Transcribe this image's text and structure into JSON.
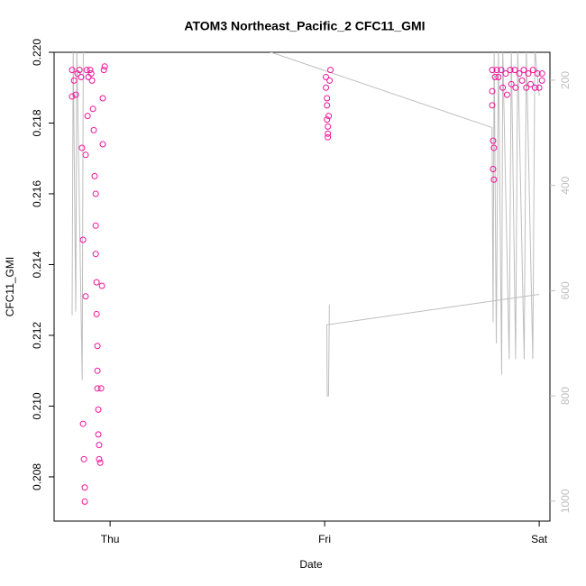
{
  "chart_data": {
    "type": "scatter",
    "title": "ATOM3 Northeast_Pacific_2 CFC11_GMI",
    "xlabel": "Date",
    "ylabel": "CFC11_GMI",
    "xlim": [
      -0.261,
      2.05
    ],
    "xticks": [
      {
        "value": 0,
        "label": "Thu"
      },
      {
        "value": 1,
        "label": "Fri"
      },
      {
        "value": 2,
        "label": "Sat"
      }
    ],
    "ylim": [
      0.20675,
      0.22
    ],
    "yticks": [
      0.208,
      {
        "value": 0.21,
        "label": "0.210"
      },
      0.212,
      0.214,
      0.216,
      0.218,
      {
        "value": 0.22,
        "label": "0.220"
      }
    ],
    "y2lim": [
      1038,
      147
    ],
    "y2ticks": [
      200,
      400,
      600,
      800,
      1000
    ],
    "y2color": "#bebebe",
    "series": [
      {
        "type": "scatter",
        "color": "#f0149a",
        "x": [
          -0.177,
          -0.177,
          -0.168,
          -0.16,
          -0.152,
          -0.143,
          -0.135,
          -0.131,
          -0.126,
          -0.126,
          -0.122,
          -0.118,
          -0.118,
          -0.114,
          -0.114,
          -0.109,
          -0.105,
          -0.101,
          -0.093,
          -0.088,
          -0.084,
          -0.08,
          -0.076,
          -0.072,
          -0.067,
          -0.067,
          -0.067,
          -0.063,
          -0.063,
          -0.059,
          -0.059,
          -0.059,
          -0.055,
          -0.055,
          -0.051,
          -0.051,
          -0.046,
          -0.042,
          -0.038,
          -0.034,
          -0.034,
          -0.029,
          -0.025,
          1.006,
          1.006,
          1.011,
          1.011,
          1.011,
          1.015,
          1.015,
          1.015,
          1.019,
          1.023,
          1.027,
          1.781,
          1.781,
          1.781,
          1.785,
          1.785,
          1.789,
          1.789,
          1.794,
          1.802,
          1.81,
          1.823,
          1.83,
          1.844,
          1.85,
          1.865,
          1.87,
          1.886,
          1.89,
          1.907,
          1.92,
          1.928,
          1.94,
          1.949,
          1.96,
          1.971,
          1.98,
          1.992,
          2.0,
          2.013,
          2.013
        ],
        "values": [
          0.21875,
          0.2195,
          0.2192,
          0.2188,
          0.2194,
          0.2195,
          0.2193,
          0.2173,
          0.2147,
          0.2095,
          0.2085,
          0.2077,
          0.2073,
          0.2131,
          0.2171,
          0.2195,
          0.2182,
          0.2193,
          0.2195,
          0.2194,
          0.2192,
          0.2184,
          0.2178,
          0.2165,
          0.216,
          0.2151,
          0.2143,
          0.2135,
          0.2126,
          0.2117,
          0.211,
          0.2105,
          0.2099,
          0.2092,
          0.2089,
          0.2085,
          0.2084,
          0.2105,
          0.2134,
          0.2174,
          0.2187,
          0.2195,
          0.2196,
          0.2193,
          0.219,
          0.2187,
          0.2185,
          0.2181,
          0.2179,
          0.2177,
          0.2176,
          0.2182,
          0.2192,
          0.2195,
          0.2195,
          0.2189,
          0.2185,
          0.2175,
          0.2167,
          0.2164,
          0.2173,
          0.2193,
          0.2195,
          0.2193,
          0.2195,
          0.219,
          0.2194,
          0.2188,
          0.2195,
          0.2191,
          0.2195,
          0.219,
          0.2194,
          0.2192,
          0.2195,
          0.219,
          0.2194,
          0.2191,
          0.2195,
          0.219,
          0.2194,
          0.219,
          0.2194,
          0.2192
        ]
      },
      {
        "type": "line",
        "axis": "y2",
        "color": "#bebebe",
        "x": [
          -0.177,
          -0.172,
          -0.16,
          -0.155,
          -0.13,
          -0.125,
          -0.11,
          -0.09,
          -0.07,
          -0.05,
          -0.03,
          0.7,
          1.78,
          1.785,
          1.79,
          1.8,
          1.81,
          1.825,
          1.83,
          1.86,
          1.87,
          1.89,
          1.9,
          1.93,
          1.94,
          1.97,
          1.98,
          2.0,
          null,
          1.022,
          1.018,
          1.012,
          1.01,
          2.0
        ],
        "values": [
          647,
          140,
          640,
          140,
          770,
          140,
          140,
          140,
          140,
          140,
          140,
          140,
          290,
          660,
          140,
          700,
          140,
          760,
          140,
          730,
          140,
          730,
          140,
          730,
          140,
          730,
          140,
          230,
          null,
          627,
          800,
          800,
          665,
          607
        ]
      }
    ]
  }
}
